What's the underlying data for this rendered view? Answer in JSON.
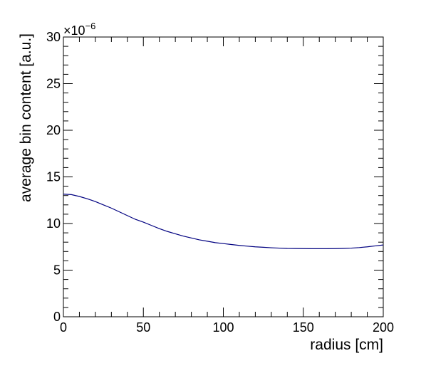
{
  "chart_data": {
    "type": "line",
    "title": "",
    "xlabel": "radius [cm]",
    "ylabel": "average bin content [a.u.]",
    "y_multiplier_label": "×10",
    "y_multiplier_exponent": "−6",
    "xlim": [
      0,
      200
    ],
    "ylim": [
      0,
      30
    ],
    "x_ticks": [
      0,
      50,
      100,
      150,
      200
    ],
    "x_tick_labels": [
      "0",
      "50",
      "100",
      "150",
      "200"
    ],
    "y_ticks": [
      0,
      5,
      10,
      15,
      20,
      25,
      30
    ],
    "y_tick_labels": [
      "0",
      "5",
      "10",
      "15",
      "20",
      "25",
      "30"
    ],
    "grid": false,
    "legend": "none",
    "line_color": "#000080",
    "series": [
      {
        "x": [
          0,
          5,
          10,
          15,
          20,
          25,
          30,
          35,
          40,
          45,
          50,
          55,
          60,
          65,
          70,
          75,
          80,
          85,
          90,
          95,
          100,
          105,
          110,
          115,
          120,
          125,
          130,
          135,
          140,
          145,
          150,
          155,
          160,
          165,
          170,
          175,
          180,
          185,
          190,
          195,
          200
        ],
        "y": [
          13.15,
          13.1,
          12.9,
          12.65,
          12.35,
          12.0,
          11.65,
          11.25,
          10.85,
          10.45,
          10.15,
          9.8,
          9.45,
          9.15,
          8.9,
          8.65,
          8.45,
          8.25,
          8.1,
          7.95,
          7.85,
          7.75,
          7.65,
          7.57,
          7.5,
          7.45,
          7.4,
          7.36,
          7.33,
          7.32,
          7.31,
          7.3,
          7.3,
          7.3,
          7.31,
          7.33,
          7.36,
          7.42,
          7.5,
          7.6,
          7.7
        ]
      }
    ]
  }
}
